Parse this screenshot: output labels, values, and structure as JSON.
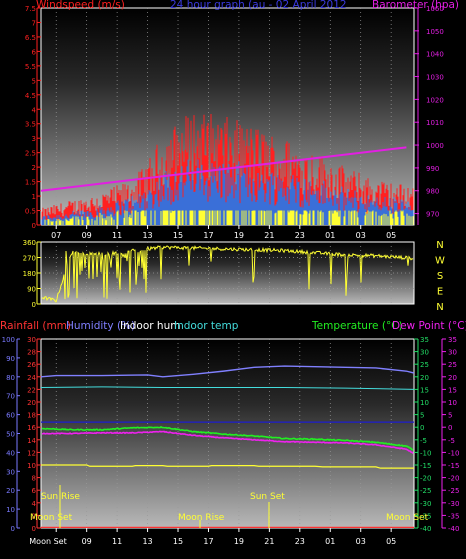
{
  "colors": {
    "wind": "#ff2020",
    "gust": "#3a6fd8",
    "yellow": "#ffff33",
    "barometer": "#e21fe2",
    "humidity": "#8080ff",
    "indoor_hum": "#ffffff",
    "indoor_temp": "#44dddd",
    "temperature": "#22ee22",
    "dew_point": "#ee22ee",
    "rain": "#ff3333",
    "rain_axis": "#7a7aff",
    "temp_axis": "#22dd66",
    "dew_axis": "#ee22ee"
  },
  "chart_data": [
    {
      "type": "bar",
      "name_key": "wind-panel",
      "title": "24 hour graph (au - 02 April 2012",
      "left_label": "Windspeed (m/s)",
      "right_label": "Barometer (hpa)",
      "x_ticks": [
        "07",
        "09",
        "11",
        "13",
        "15",
        "17",
        "19",
        "21",
        "23",
        "01",
        "03",
        "05"
      ],
      "y_left_ticks": [
        "0",
        "0.5",
        "1",
        "1.5",
        "2",
        "2.5",
        "3",
        "3.5",
        "4",
        "4.5",
        "5",
        "5.5",
        "6",
        "6.5",
        "7",
        "7.5"
      ],
      "y_left_range": [
        0,
        7.5
      ],
      "y_right_ticks": [
        "970",
        "980",
        "990",
        "1000",
        "1010",
        "1020",
        "1030",
        "1040",
        "1050",
        "1060"
      ],
      "y_right_range": [
        965,
        1060
      ],
      "barometer": {
        "x": [
          6,
          30
        ],
        "y": [
          980,
          999
        ]
      },
      "wind_profile": {
        "x": [
          6,
          8,
          10,
          12,
          13,
          14,
          16,
          18,
          20,
          22,
          24,
          26,
          28,
          29.5,
          30.5
        ],
        "mean": [
          0.3,
          0.4,
          0.6,
          0.9,
          1.2,
          1.6,
          2.0,
          1.9,
          1.8,
          1.6,
          1.4,
          1.1,
          0.9,
          0.8,
          0.7
        ],
        "gust": [
          0.4,
          0.6,
          0.8,
          1.1,
          1.5,
          2.2,
          2.8,
          2.6,
          2.4,
          2.1,
          1.8,
          1.4,
          1.1,
          1.0,
          1.0
        ]
      }
    },
    {
      "type": "line",
      "name_key": "direction-panel",
      "y_left_ticks": [
        "360",
        "270",
        "180",
        "90",
        "0"
      ],
      "y_range": [
        0,
        360
      ],
      "compass": [
        "N",
        "W",
        "S",
        "E",
        "N"
      ],
      "profile": {
        "x": [
          6,
          7,
          8,
          10,
          12,
          13,
          14,
          18,
          22,
          26,
          28,
          30.5
        ],
        "deg": [
          40,
          20,
          300,
          290,
          300,
          320,
          330,
          320,
          310,
          285,
          280,
          265
        ]
      }
    },
    {
      "type": "line",
      "name_key": "temp-panel",
      "header": {
        "rainfall": "Rainfall (mm)",
        "humidity": "Humidity (%)",
        "indoor_hum": "Indoor hum",
        "indoor_temp": "Indoor temp",
        "temperature": "Temperature (°C)",
        "dew_point": "Dew Point (°C)"
      },
      "rain_ticks": [
        "0",
        "2",
        "4",
        "6",
        "8",
        "10",
        "12",
        "14",
        "16",
        "18",
        "20",
        "22",
        "24",
        "26",
        "28",
        "30"
      ],
      "hum_ticks": [
        "0",
        "10",
        "20",
        "30",
        "40",
        "50",
        "60",
        "70",
        "80",
        "90",
        "100"
      ],
      "temp_ticks": [
        "35",
        "30",
        "25",
        "20",
        "15",
        "10",
        "5",
        "0",
        "-5",
        "-10",
        "-15",
        "-20",
        "-25",
        "-30",
        "-35",
        "-40"
      ],
      "dew_ticks": [
        "35",
        "30",
        "25",
        "20",
        "15",
        "10",
        "5",
        "0",
        "-5",
        "-10",
        "-15",
        "-20",
        "-25",
        "-30",
        "-35",
        "-40"
      ],
      "x_ticks": [
        "Moon Set",
        "09",
        "11",
        "13",
        "15",
        "17",
        "19",
        "21",
        "23",
        "01",
        "03",
        "05"
      ],
      "events": {
        "sun_rise": "Sun Rise",
        "sun_set": "Sun Set",
        "moon_set": "Moon Set",
        "moon_rise": "Moon Rise",
        "moon_set_2": "Moon Set"
      },
      "series": {
        "indoor_hum": {
          "x": [
            6,
            7,
            10,
            13,
            14,
            16,
            18,
            20,
            22,
            24,
            26,
            28,
            30,
            30.5
          ],
          "y": [
            24,
            24.2,
            24.2,
            24.3,
            24.0,
            24.4,
            24.9,
            25.5,
            25.7,
            25.6,
            25.5,
            25.4,
            24.9,
            24.6
          ]
        },
        "indoor_temp": {
          "x": [
            6,
            10,
            14,
            18,
            22,
            26,
            30.5
          ],
          "y": [
            22.3,
            22.4,
            22.3,
            22.3,
            22.3,
            22.2,
            22.0
          ]
        },
        "temperature": {
          "x": [
            6,
            8,
            10,
            12,
            14,
            16,
            18,
            20,
            22,
            24,
            26,
            28,
            30,
            30.5
          ],
          "y": [
            15.8,
            15.6,
            15.6,
            15.9,
            16.0,
            15.3,
            14.9,
            14.6,
            14.2,
            14.1,
            13.9,
            13.6,
            13.0,
            12.3
          ]
        },
        "dew_point": {
          "x": [
            6,
            8,
            10,
            12,
            14,
            16,
            18,
            20,
            22,
            24,
            26,
            28,
            30,
            30.5
          ],
          "y": [
            15.0,
            15.0,
            15.1,
            15.1,
            15.3,
            14.7,
            14.3,
            14.0,
            13.7,
            13.6,
            13.5,
            13.2,
            12.5,
            11.8
          ]
        },
        "humidity": {
          "x": [
            6,
            30.5
          ],
          "y": [
            16.8,
            16.8
          ]
        },
        "rain": {
          "x": [
            6,
            30.5
          ],
          "y": [
            0.1,
            0.1
          ]
        },
        "solar": {
          "x": [
            6,
            9,
            9.2,
            12,
            12.2,
            14,
            14.3,
            17,
            17.2,
            20,
            20.3,
            24,
            24.5,
            28,
            28.3,
            30.5
          ],
          "y": [
            10,
            10,
            9.8,
            9.8,
            9.9,
            9.9,
            9.8,
            9.8,
            9.9,
            9.9,
            9.8,
            9.8,
            9.7,
            9.7,
            9.5,
            9.5
          ]
        }
      }
    }
  ]
}
